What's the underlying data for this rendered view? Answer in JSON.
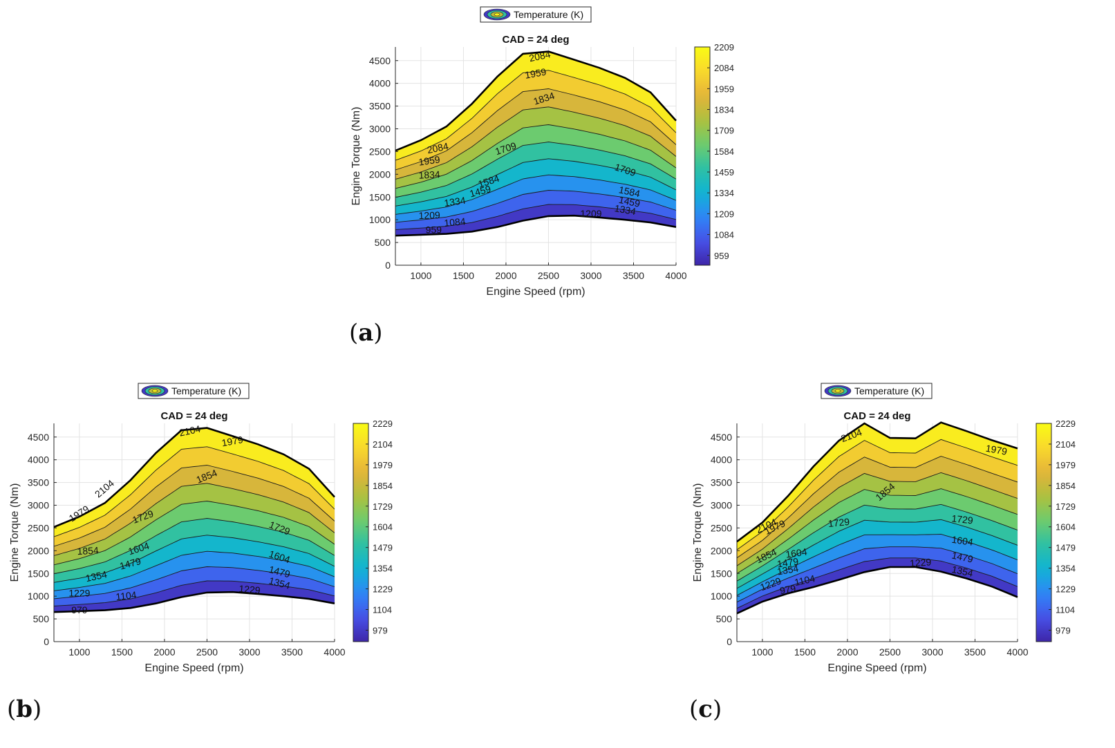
{
  "legend_label": "Temperature (K)",
  "xlabel": "Engine Speed (rpm)",
  "ylabel": "Engine Torque (Nm)",
  "title": "CAD = 24 deg",
  "x_ticks": [
    "1000",
    "1500",
    "2000",
    "2500",
    "3000",
    "3500",
    "4000"
  ],
  "y_ticks": [
    "0",
    "500",
    "1000",
    "1500",
    "2000",
    "2500",
    "3000",
    "3500",
    "4000",
    "4500"
  ],
  "captions": [
    {
      "open": "(",
      "letter": "a",
      "close": ")"
    },
    {
      "open": "(",
      "letter": "b",
      "close": ")"
    },
    {
      "open": "(",
      "letter": "c",
      "close": ")"
    }
  ],
  "colors": {
    "stops": [
      "#3e26a8",
      "#4751e8",
      "#2e87f7",
      "#10b4d3",
      "#2ec0a4",
      "#6fcc6c",
      "#aec03d",
      "#e5b33a",
      "#f9d92c",
      "#f9fb14"
    ]
  },
  "chart_data": [
    {
      "type": "contour",
      "panel": "a",
      "title": "CAD = 24 deg",
      "xlabel": "Engine Speed (rpm)",
      "ylabel": "Engine Torque (Nm)",
      "xlim": [
        700,
        4000
      ],
      "ylim": [
        0,
        4800
      ],
      "colorbar": {
        "range": [
          900,
          2209
        ],
        "ticks": [
          "2209",
          "2084",
          "1959",
          "1834",
          "1709",
          "1584",
          "1459",
          "1334",
          "1209",
          "1084",
          "959"
        ]
      },
      "upper_boundary": [
        [
          700,
          2520
        ],
        [
          1000,
          2750
        ],
        [
          1300,
          3050
        ],
        [
          1600,
          3550
        ],
        [
          1900,
          4150
        ],
        [
          2200,
          4650
        ],
        [
          2500,
          4700
        ],
        [
          2800,
          4520
        ],
        [
          3100,
          4340
        ],
        [
          3400,
          4120
        ],
        [
          3700,
          3800
        ],
        [
          4000,
          3180
        ]
      ],
      "lower_boundary": [
        [
          700,
          650
        ],
        [
          1000,
          670
        ],
        [
          1300,
          690
        ],
        [
          1600,
          740
        ],
        [
          1900,
          840
        ],
        [
          2200,
          980
        ],
        [
          2500,
          1080
        ],
        [
          2800,
          1090
        ],
        [
          3100,
          1050
        ],
        [
          3400,
          1000
        ],
        [
          3700,
          940
        ],
        [
          4000,
          840
        ]
      ],
      "contour_levels": [
        959,
        1084,
        1209,
        1334,
        1459,
        1584,
        1709,
        1834,
        1959,
        2084
      ],
      "contour_labels": [
        "959",
        "1084",
        "1209",
        "1209",
        "1334",
        "1334",
        "1459",
        "1459",
        "1584",
        "1584",
        "1709",
        "1709",
        "1834",
        "1834",
        "1959",
        "1959",
        "2084",
        "2084"
      ]
    },
    {
      "type": "contour",
      "panel": "b",
      "title": "CAD = 24 deg",
      "xlabel": "Engine Speed (rpm)",
      "ylabel": "Engine Torque (Nm)",
      "xlim": [
        700,
        4000
      ],
      "ylim": [
        0,
        4800
      ],
      "colorbar": {
        "range": [
          910,
          2229
        ],
        "ticks": [
          "2229",
          "2104",
          "1979",
          "1854",
          "1729",
          "1604",
          "1479",
          "1354",
          "1229",
          "1104",
          "979"
        ]
      },
      "upper_boundary": [
        [
          700,
          2520
        ],
        [
          1000,
          2750
        ],
        [
          1300,
          3050
        ],
        [
          1600,
          3550
        ],
        [
          1900,
          4150
        ],
        [
          2200,
          4650
        ],
        [
          2500,
          4700
        ],
        [
          2800,
          4520
        ],
        [
          3100,
          4340
        ],
        [
          3400,
          4120
        ],
        [
          3700,
          3800
        ],
        [
          4000,
          3180
        ]
      ],
      "lower_boundary": [
        [
          700,
          650
        ],
        [
          1000,
          670
        ],
        [
          1300,
          690
        ],
        [
          1600,
          740
        ],
        [
          1900,
          840
        ],
        [
          2200,
          980
        ],
        [
          2500,
          1080
        ],
        [
          2800,
          1090
        ],
        [
          3100,
          1050
        ],
        [
          3400,
          1000
        ],
        [
          3700,
          940
        ],
        [
          4000,
          840
        ]
      ],
      "contour_levels": [
        979,
        1104,
        1229,
        1354,
        1479,
        1604,
        1729,
        1854,
        1979,
        2104
      ],
      "contour_labels": [
        "979",
        "1104",
        "1229",
        "1229",
        "1354",
        "1354",
        "1479",
        "1479",
        "1604",
        "1604",
        "1729",
        "1729",
        "1854",
        "1854",
        "1979",
        "1979",
        "2104",
        "2104"
      ]
    },
    {
      "type": "contour",
      "panel": "c",
      "title": "CAD = 24 deg",
      "xlabel": "Engine Speed (rpm)",
      "ylabel": "Engine Torque (Nm)",
      "xlim": [
        700,
        4000
      ],
      "ylim": [
        0,
        4800
      ],
      "colorbar": {
        "range": [
          910,
          2229
        ],
        "ticks": [
          "2229",
          "2104",
          "1979",
          "1854",
          "1729",
          "1604",
          "1479",
          "1354",
          "1229",
          "1104",
          "979"
        ]
      },
      "upper_boundary": [
        [
          700,
          2200
        ],
        [
          1000,
          2620
        ],
        [
          1300,
          3200
        ],
        [
          1600,
          3850
        ],
        [
          1900,
          4420
        ],
        [
          2200,
          4800
        ],
        [
          2500,
          4480
        ],
        [
          2800,
          4470
        ],
        [
          3100,
          4820
        ],
        [
          3400,
          4630
        ],
        [
          3700,
          4430
        ],
        [
          4000,
          4250
        ]
      ],
      "lower_boundary": [
        [
          700,
          620
        ],
        [
          1000,
          880
        ],
        [
          1300,
          1060
        ],
        [
          1600,
          1200
        ],
        [
          1900,
          1360
        ],
        [
          2200,
          1530
        ],
        [
          2500,
          1640
        ],
        [
          2800,
          1640
        ],
        [
          3100,
          1540
        ],
        [
          3400,
          1390
        ],
        [
          3700,
          1210
        ],
        [
          4000,
          980
        ]
      ],
      "contour_levels": [
        979,
        1104,
        1229,
        1354,
        1479,
        1604,
        1729,
        1854,
        1979,
        2104
      ],
      "contour_labels": [
        "979",
        "1104",
        "1229",
        "1229",
        "1354",
        "1354",
        "1479",
        "1479",
        "1604",
        "1604",
        "1729",
        "1729",
        "1854",
        "1854",
        "1979",
        "1979",
        "2104",
        "2104"
      ]
    }
  ]
}
